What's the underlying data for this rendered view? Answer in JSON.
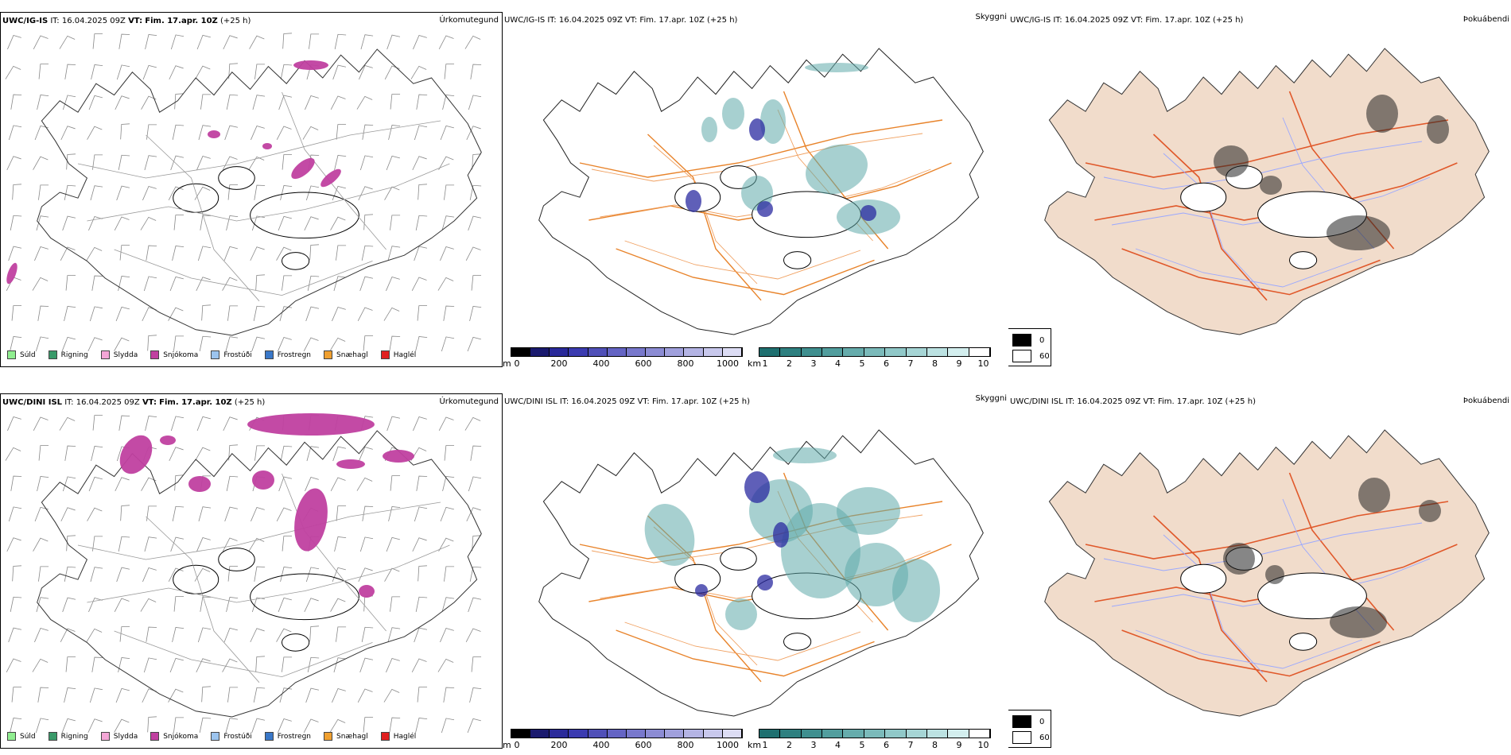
{
  "rows": [
    {
      "left": {
        "model": "UWC/IG-IS",
        "it_label": "IT:",
        "it_value": "16.04.2025 09Z",
        "vt_label": "VT:",
        "vt_value": "Fim. 17.apr. 10Z",
        "lead": "(+25 h)",
        "title": "Úrkomutegund"
      },
      "middle": {
        "header": "UWC/IG-IS IT: 16.04.2025 09Z VT: Fim. 17.apr. 10Z (+25 h)",
        "title": "Skyggni"
      },
      "right": {
        "header": "UWC/IG-IS IT: 16.04.2025 09Z VT: Fim. 17.apr. 10Z (+25 h)",
        "title": "Þokuábendi"
      }
    },
    {
      "left": {
        "model": "UWC/DINI ISL",
        "it_label": "IT:",
        "it_value": "16.04.2025 09Z",
        "vt_label": "VT:",
        "vt_value": "Fim. 17.apr. 10Z",
        "lead": "(+25 h)",
        "title": "Úrkomutegund"
      },
      "middle": {
        "header": "UWC/DINI ISL IT: 16.04.2025 09Z VT: Fim. 17.apr. 10Z (+25 h)",
        "title": "Skyggni"
      },
      "right": {
        "header": "UWC/DINI ISL IT: 16.04.2025 09Z VT: Fim. 17.apr. 10Z (+25 h)",
        "title": "Þokuábendi"
      }
    }
  ],
  "precip_legend": [
    {
      "label": "Súld",
      "color": "#90ee90"
    },
    {
      "label": "Rigning",
      "color": "#3a9a6a"
    },
    {
      "label": "Slydda",
      "color": "#f4a6d6"
    },
    {
      "label": "Snjókoma",
      "color": "#c040a0"
    },
    {
      "label": "Frostúði",
      "color": "#9cc4ee"
    },
    {
      "label": "Frostregn",
      "color": "#3a78c8"
    },
    {
      "label": "Snæhagl",
      "color": "#f0a030"
    },
    {
      "label": "Haglél",
      "color": "#e02020"
    }
  ],
  "height_bar": {
    "unit": "m",
    "ticks": [
      "0",
      "200",
      "400",
      "600",
      "800",
      "1000"
    ],
    "colors": [
      "#000000",
      "#1a1a6e",
      "#2a2a9a",
      "#3b3bb0",
      "#5050b8",
      "#6464c4",
      "#7878cc",
      "#8c8cd4",
      "#a0a0dc",
      "#b4b4e4",
      "#c8c8ec",
      "#dcdcf4"
    ]
  },
  "vis_bar": {
    "unit": "km",
    "ticks": [
      "1",
      "2",
      "3",
      "4",
      "5",
      "6",
      "7",
      "8",
      "9",
      "10"
    ],
    "colors": [
      "#1f7070",
      "#2e8080",
      "#3f8f8f",
      "#529e9e",
      "#66acac",
      "#7bbaba",
      "#90c8c8",
      "#a6d5d5",
      "#bce2e2",
      "#d3eeee",
      "#ffffff"
    ]
  },
  "fog_legend": [
    {
      "label": "0",
      "color": "#000000"
    },
    {
      "label": "60",
      "color": "#ffffff"
    }
  ]
}
